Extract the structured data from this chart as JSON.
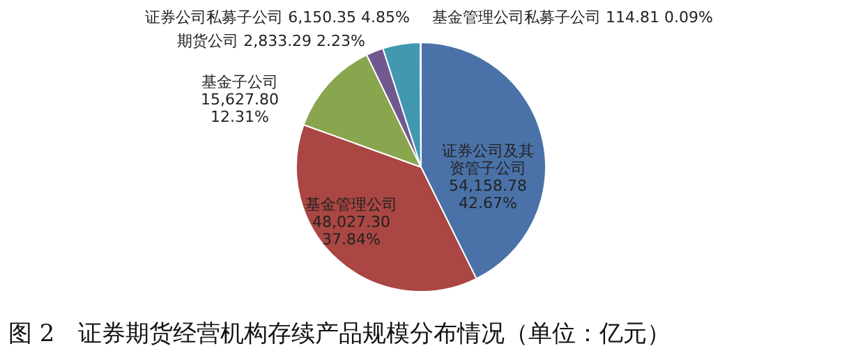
{
  "chart_data": {
    "type": "pie",
    "title": "图 2　证券期货经营机构存续产品规模分布情况（单位：亿元）",
    "categories": [
      "证券公司及其资管子公司",
      "基金管理公司",
      "基金子公司",
      "期货公司",
      "证券公司私募子公司",
      "基金管理公司私募子公司"
    ],
    "values": [
      54158.78,
      48027.3,
      15627.8,
      2833.29,
      6150.35,
      114.81
    ],
    "value_labels": [
      "54,158.78\n42.67%",
      "48,027.30\n37.84%",
      "15,627.80\n12.31%",
      "2,833.29\n2.23%",
      "6,150.35\n4.85%",
      "114.81\n0.09%"
    ],
    "colors": [
      "#4a72a8",
      "#aa4643",
      "#89a54e",
      "#71588f",
      "#4198af",
      "#db843d"
    ],
    "legend": false
  }
}
